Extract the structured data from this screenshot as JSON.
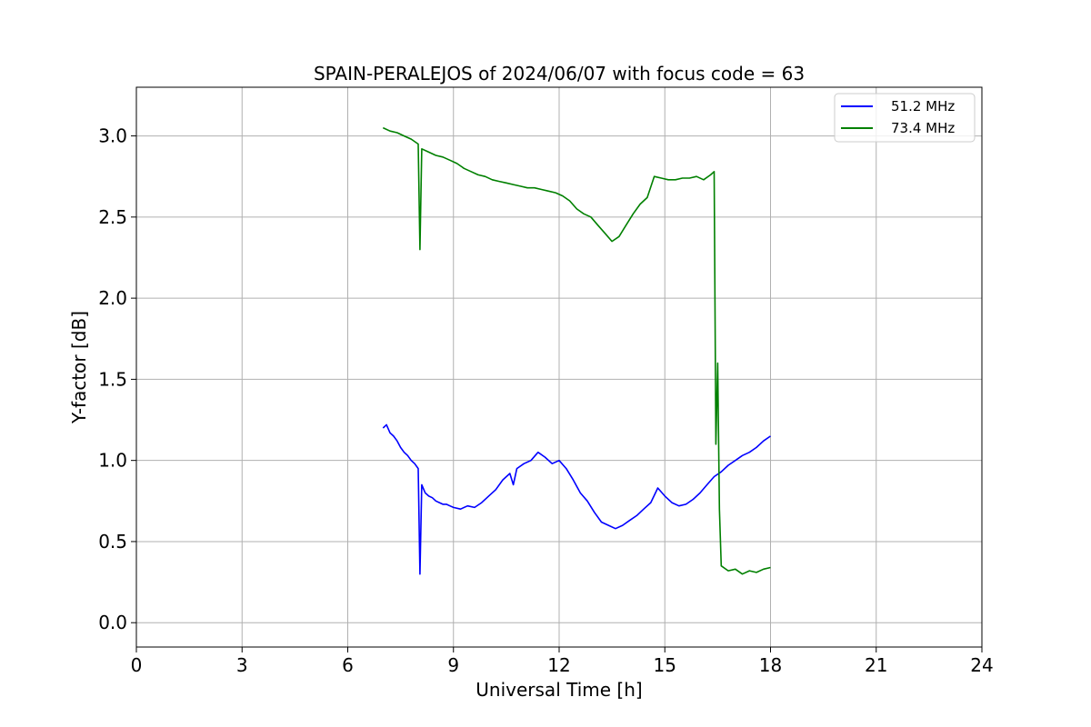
{
  "chart_data": {
    "type": "line",
    "title": "SPAIN-PERALEJOS of 2024/06/07 with focus code = 63",
    "xlabel": "Universal Time [h]",
    "ylabel": "Y-factor [dB]",
    "xlim": [
      0,
      24
    ],
    "ylim": [
      -0.15,
      3.3
    ],
    "xticks": [
      0,
      3,
      6,
      9,
      12,
      15,
      18,
      21,
      24
    ],
    "yticks": [
      0.0,
      0.5,
      1.0,
      1.5,
      2.0,
      2.5,
      3.0
    ],
    "xtick_labels": [
      "0",
      "3",
      "6",
      "9",
      "12",
      "15",
      "18",
      "21",
      "24"
    ],
    "ytick_labels": [
      "0.0",
      "0.5",
      "1.0",
      "1.5",
      "2.0",
      "2.5",
      "3.0"
    ],
    "grid": true,
    "legend_position": "top-right",
    "series": [
      {
        "name": "51.2 MHz",
        "color": "#0000ff",
        "x": [
          7.0,
          7.1,
          7.2,
          7.3,
          7.4,
          7.5,
          7.6,
          7.7,
          7.8,
          7.9,
          8.0,
          8.05,
          8.1,
          8.2,
          8.3,
          8.4,
          8.5,
          8.6,
          8.7,
          8.8,
          8.9,
          9.0,
          9.2,
          9.4,
          9.6,
          9.8,
          10.0,
          10.2,
          10.4,
          10.6,
          10.7,
          10.8,
          11.0,
          11.2,
          11.4,
          11.6,
          11.8,
          12.0,
          12.2,
          12.4,
          12.6,
          12.8,
          13.0,
          13.2,
          13.4,
          13.6,
          13.8,
          14.0,
          14.2,
          14.4,
          14.6,
          14.8,
          15.0,
          15.2,
          15.4,
          15.6,
          15.8,
          16.0,
          16.2,
          16.4,
          16.6,
          16.8,
          17.0,
          17.2,
          17.4,
          17.6,
          17.8,
          18.0
        ],
        "y": [
          1.2,
          1.22,
          1.17,
          1.15,
          1.12,
          1.08,
          1.05,
          1.03,
          1.0,
          0.98,
          0.95,
          0.3,
          0.85,
          0.8,
          0.78,
          0.77,
          0.75,
          0.74,
          0.73,
          0.73,
          0.72,
          0.71,
          0.7,
          0.72,
          0.71,
          0.74,
          0.78,
          0.82,
          0.88,
          0.92,
          0.85,
          0.95,
          0.98,
          1.0,
          1.05,
          1.02,
          0.98,
          1.0,
          0.95,
          0.88,
          0.8,
          0.75,
          0.68,
          0.62,
          0.6,
          0.58,
          0.6,
          0.63,
          0.66,
          0.7,
          0.74,
          0.83,
          0.78,
          0.74,
          0.72,
          0.73,
          0.76,
          0.8,
          0.85,
          0.9,
          0.93,
          0.97,
          1.0,
          1.03,
          1.05,
          1.08,
          1.12,
          1.15
        ]
      },
      {
        "name": "73.4 MHz",
        "color": "#008000",
        "x": [
          7.0,
          7.2,
          7.4,
          7.6,
          7.8,
          8.0,
          8.05,
          8.1,
          8.3,
          8.5,
          8.7,
          8.9,
          9.1,
          9.3,
          9.5,
          9.7,
          9.9,
          10.1,
          10.3,
          10.5,
          10.7,
          10.9,
          11.1,
          11.3,
          11.5,
          11.7,
          11.9,
          12.1,
          12.3,
          12.5,
          12.7,
          12.9,
          13.1,
          13.3,
          13.5,
          13.7,
          13.9,
          14.1,
          14.3,
          14.5,
          14.7,
          14.9,
          15.1,
          15.3,
          15.5,
          15.7,
          15.9,
          16.1,
          16.3,
          16.4,
          16.45,
          16.5,
          16.55,
          16.6,
          16.8,
          17.0,
          17.2,
          17.4,
          17.6,
          17.8,
          18.0
        ],
        "y": [
          3.05,
          3.03,
          3.02,
          3.0,
          2.98,
          2.95,
          2.3,
          2.92,
          2.9,
          2.88,
          2.87,
          2.85,
          2.83,
          2.8,
          2.78,
          2.76,
          2.75,
          2.73,
          2.72,
          2.71,
          2.7,
          2.69,
          2.68,
          2.68,
          2.67,
          2.66,
          2.65,
          2.63,
          2.6,
          2.55,
          2.52,
          2.5,
          2.45,
          2.4,
          2.35,
          2.38,
          2.45,
          2.52,
          2.58,
          2.62,
          2.75,
          2.74,
          2.73,
          2.73,
          2.74,
          2.74,
          2.75,
          2.73,
          2.76,
          2.78,
          1.1,
          1.6,
          0.7,
          0.35,
          0.32,
          0.33,
          0.3,
          0.32,
          0.31,
          0.33,
          0.34
        ]
      }
    ]
  }
}
